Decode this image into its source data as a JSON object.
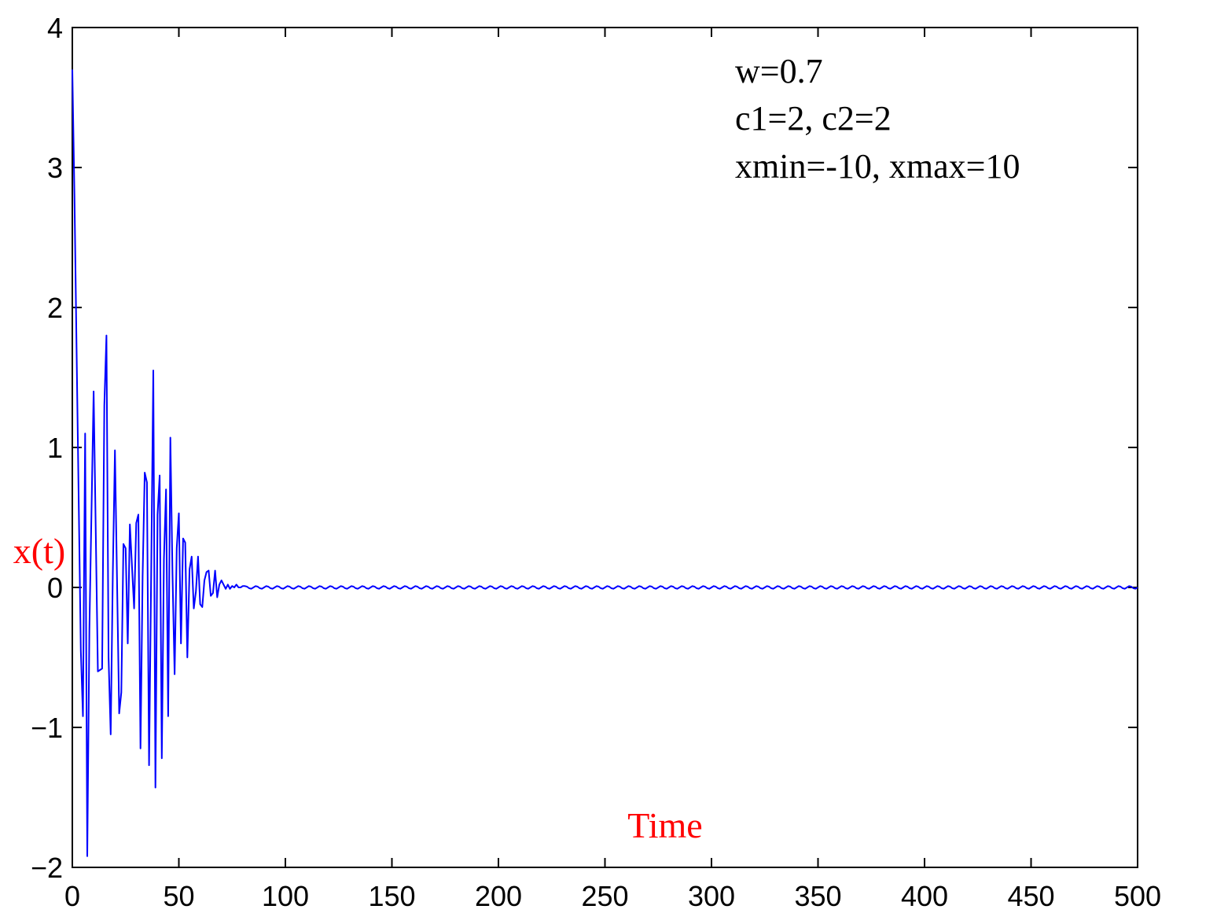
{
  "chart_data": {
    "type": "line",
    "title": "",
    "xlabel": "Time",
    "ylabel": "x(t)",
    "xlim": [
      0,
      500
    ],
    "ylim": [
      -2,
      4
    ],
    "xticks": [
      0,
      50,
      100,
      150,
      200,
      250,
      300,
      350,
      400,
      450,
      500
    ],
    "yticks": [
      -2,
      -1,
      0,
      1,
      2,
      3,
      4
    ],
    "xtick_labels": [
      "0",
      "50",
      "100",
      "150",
      "200",
      "250",
      "300",
      "350",
      "400",
      "450",
      "500"
    ],
    "ytick_labels": [
      "−2",
      "−1",
      "0",
      "1",
      "2",
      "3",
      "4"
    ],
    "grid": false,
    "annotations": [
      "w=0.7",
      "c1=2, c2=2",
      "xmin=-10, xmax=10"
    ],
    "label_color": "#ff0000",
    "series": [
      {
        "color": "#0000ff",
        "x": [
          0,
          1,
          2,
          4,
          5,
          6,
          7,
          8,
          10,
          12,
          14,
          15,
          16,
          17,
          18,
          19,
          20,
          22,
          23,
          24,
          25,
          26,
          27,
          29,
          30,
          31,
          32,
          33,
          34,
          35,
          36,
          37,
          38,
          39,
          40,
          41,
          42,
          43,
          44,
          45,
          46,
          47,
          48,
          49,
          50,
          51,
          52,
          53,
          54,
          55,
          56,
          57,
          58,
          59,
          60,
          61,
          62,
          63,
          64,
          65,
          66,
          67,
          68,
          69,
          70,
          71,
          72,
          73,
          74,
          75,
          76,
          77,
          78,
          79,
          80
        ],
        "y": [
          3.7,
          2.8,
          1.7,
          -0.45,
          -0.92,
          1.1,
          -1.92,
          -0.3,
          1.4,
          -0.6,
          -0.58,
          1.3,
          1.8,
          -0.5,
          -1.05,
          0.1,
          0.98,
          -0.9,
          -0.75,
          0.31,
          0.28,
          -0.4,
          0.45,
          -0.15,
          0.46,
          0.52,
          -1.15,
          0.08,
          0.82,
          0.75,
          -1.27,
          0.1,
          1.55,
          -1.43,
          0.52,
          0.8,
          -1.22,
          0.2,
          0.7,
          -0.92,
          1.07,
          0.1,
          -0.62,
          0.28,
          0.53,
          -0.4,
          0.35,
          0.32,
          -0.5,
          0.13,
          0.22,
          -0.15,
          -0.03,
          0.22,
          -0.12,
          -0.14,
          0.05,
          0.11,
          0.12,
          -0.06,
          -0.04,
          0.12,
          -0.07,
          0.02,
          0.05,
          0.02,
          -0.01,
          0.02,
          -0.01,
          0.01,
          0.0,
          0.02,
          0.0,
          0.0,
          0.01
        ]
      }
    ],
    "tail_oscillation": {
      "x_start": 80,
      "x_end": 500,
      "amplitude": 0.01,
      "period": 5
    }
  }
}
